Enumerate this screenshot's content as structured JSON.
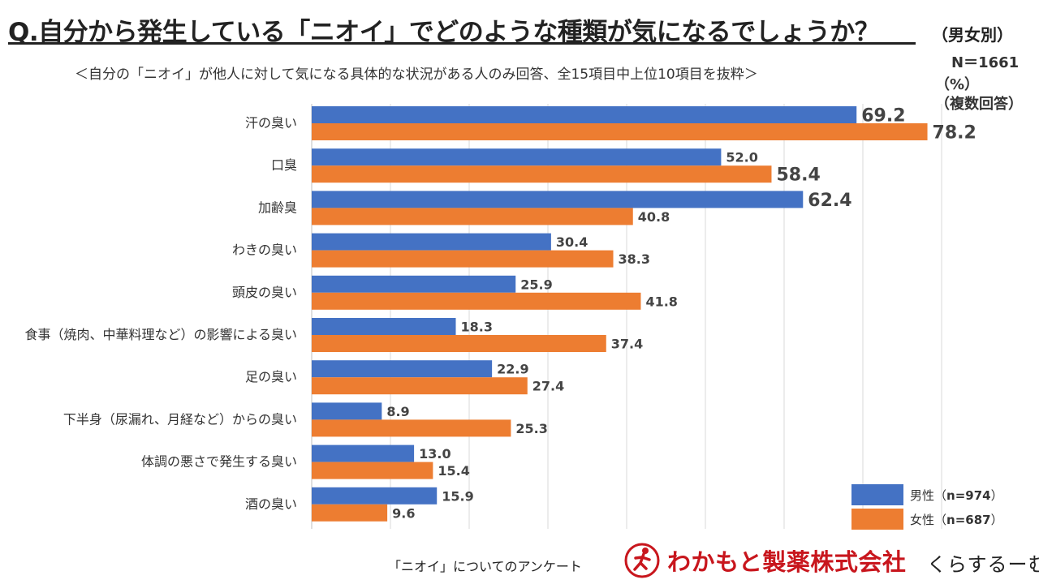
{
  "header": {
    "title": "Q.自分から発生している「ニオイ」でどのような種類が気になるでしょうか？",
    "title_note": "（男女別）",
    "subtitle": "＜自分の「ニオイ」が他人に対して気になる具体的な状況がある人のみ回答、全15項目中上位10項目を抜粋＞",
    "sample_size": "N＝1661",
    "unit": "（%）",
    "multi_answer": "（複数回答）"
  },
  "colors": {
    "male": "#4472C4",
    "female": "#ED7D31",
    "grid": "#d9d9d9"
  },
  "legend": {
    "male_label": "男性（",
    "male_n": "n=974",
    "female_label": "女性（",
    "female_n": "n=687",
    "close": "）"
  },
  "footer": {
    "survey": "「ニオイ」についてのアンケート",
    "company": "わかもと製薬株式会社",
    "brand": "くらするーむ",
    "logo_icon": "runner-emblem-icon"
  },
  "chart_data": {
    "type": "bar",
    "orientation": "horizontal",
    "title": "Q.自分から発生している「ニオイ」でどのような種類が気になるでしょうか？（男女別）",
    "categories": [
      "汗の臭い",
      "口臭",
      "加齢臭",
      "わきの臭い",
      "頭皮の臭い",
      "食事（焼肉、中華料理など）の影響による臭い",
      "足の臭い",
      "下半身（尿漏れ、月経など）からの臭い",
      "体調の悪さで発生する臭い",
      "酒の臭い"
    ],
    "series": [
      {
        "name": "男性（n=974）",
        "values": [
          69.2,
          52.0,
          62.4,
          30.4,
          25.9,
          18.3,
          22.9,
          8.9,
          13.0,
          15.9
        ],
        "labels": [
          "69.2",
          "52.0",
          "62.4",
          "30.4",
          "25.9",
          "18.3",
          "22.9",
          "8.9",
          "13.0",
          "15.9"
        ]
      },
      {
        "name": "女性（n=687）",
        "values": [
          78.2,
          58.4,
          40.8,
          38.3,
          41.8,
          37.4,
          27.4,
          25.3,
          15.4,
          9.6
        ],
        "labels": [
          "78.2",
          "58.4",
          "40.8",
          "38.3",
          "41.8",
          "37.4",
          "27.4",
          "25.3",
          "15.4",
          "9.6"
        ]
      }
    ],
    "highlight_min": 55,
    "xlim": [
      0,
      80
    ],
    "grid": true,
    "legend": "bottom-right"
  }
}
